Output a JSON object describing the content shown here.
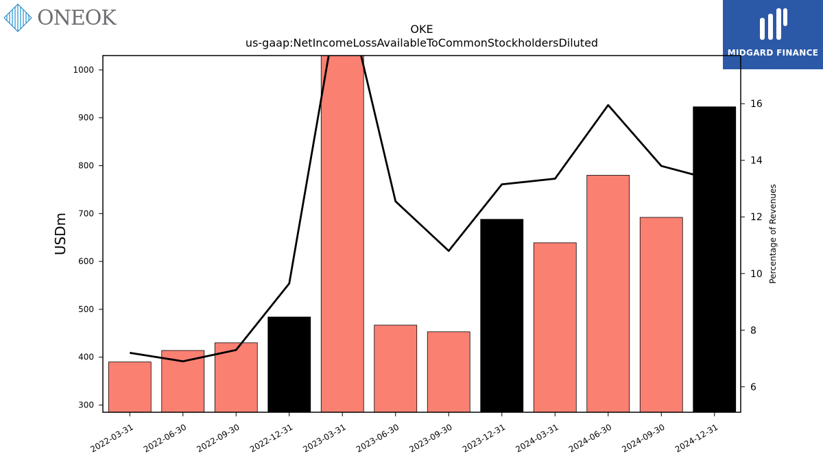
{
  "logos": {
    "company": "ONEOK",
    "publisher": "MIDGARD FINANCE"
  },
  "chart_data": {
    "type": "bar",
    "title": "OKE",
    "subtitle": "us-gaap:NetIncomeLossAvailableToCommonStockholdersDiluted",
    "ylabel": "USDm",
    "y2label": "Percentage of Revenues",
    "categories": [
      "2022-03-31",
      "2022-06-30",
      "2022-09-30",
      "2022-12-31",
      "2023-03-31",
      "2023-06-30",
      "2023-09-30",
      "2023-12-31",
      "2024-03-31",
      "2024-06-30",
      "2024-09-30",
      "2024-12-31"
    ],
    "series": [
      {
        "type": "bar",
        "values": [
          390,
          414,
          430,
          484,
          1033,
          467,
          453,
          688,
          639,
          780,
          692,
          923
        ],
        "colors": [
          "#fa8072",
          "#fa8072",
          "#fa8072",
          "#000000",
          "#fa8072",
          "#fa8072",
          "#fa8072",
          "#000000",
          "#fa8072",
          "#fa8072",
          "#fa8072",
          "#000000"
        ]
      },
      {
        "type": "line",
        "axis": "right",
        "values": [
          7.2,
          6.9,
          7.3,
          9.65,
          20.5,
          12.55,
          10.8,
          13.15,
          13.35,
          15.95,
          13.8,
          13.3
        ],
        "color": "#000000"
      }
    ],
    "ylim": [
      285,
      1030
    ],
    "y2lim": [
      5.1,
      17.7
    ],
    "yticks": [
      300,
      400,
      500,
      600,
      700,
      800,
      900,
      1000
    ],
    "y2ticks": [
      6,
      8,
      10,
      12,
      14,
      16
    ],
    "grid": false
  }
}
